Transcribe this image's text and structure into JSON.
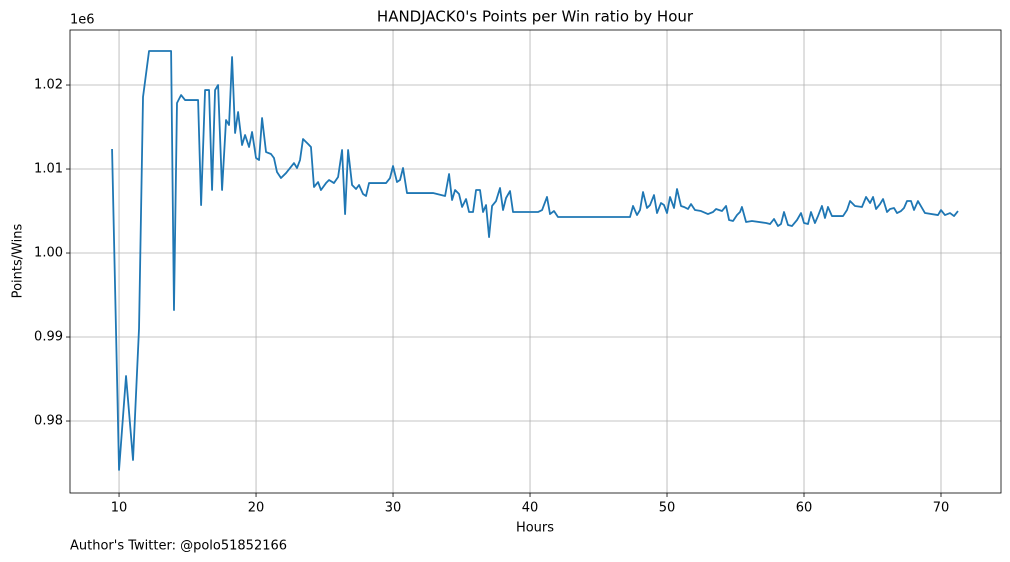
{
  "chart_data": {
    "type": "line",
    "title": "HANDJACK0's Points per Win ratio by Hour",
    "xlabel": "Hours",
    "ylabel": "Points/Wins",
    "y_offset_label": "1e6",
    "color": "#1f77b4",
    "grid": true,
    "xlim": [
      6.42,
      74.38
    ],
    "xticks": [
      10,
      20,
      30,
      40,
      50,
      60,
      70
    ],
    "ylim": [
      0.97143,
      1.02655
    ],
    "yticks": [
      0.98,
      0.99,
      {
        "value": 1,
        "label": "1.00"
      },
      1.01,
      1.02
    ],
    "x": [
      9.49,
      10.0,
      10.51,
      11.02,
      11.46,
      11.75,
      12.19,
      13.8,
      14.01,
      14.23,
      14.53,
      14.82,
      15.77,
      15.99,
      16.28,
      16.57,
      16.79,
      17.01,
      17.23,
      17.52,
      17.81,
      18.03,
      18.25,
      18.47,
      18.69,
      18.98,
      19.2,
      19.49,
      19.71,
      20.0,
      20.22,
      20.44,
      20.73,
      21.09,
      21.31,
      21.53,
      21.82,
      22.19,
      22.77,
      22.99,
      23.21,
      23.43,
      23.8,
      24.01,
      24.23,
      24.53,
      24.74,
      25.11,
      25.33,
      25.69,
      25.99,
      26.28,
      26.5,
      26.72,
      27.01,
      27.3,
      27.52,
      27.81,
      28.03,
      28.25,
      29.49,
      29.78,
      30.0,
      30.29,
      30.51,
      30.73,
      31.02,
      32.92,
      33.8,
      34.09,
      34.31,
      34.53,
      34.82,
      35.04,
      35.33,
      35.55,
      35.84,
      36.06,
      36.35,
      36.57,
      36.79,
      37.01,
      37.23,
      37.52,
      37.81,
      38.03,
      38.25,
      38.54,
      38.76,
      40.58,
      40.88,
      41.24,
      41.46,
      41.75,
      42.04,
      47.3,
      47.52,
      47.81,
      48.03,
      48.25,
      48.54,
      48.76,
      49.05,
      49.27,
      49.56,
      49.78,
      50.0,
      50.22,
      50.51,
      50.73,
      51.02,
      51.24,
      51.53,
      51.75,
      52.04,
      52.48,
      52.99,
      53.36,
      53.58,
      54.01,
      54.31,
      54.53,
      54.82,
      55.11,
      55.33,
      55.47,
      55.77,
      56.2,
      57.23,
      57.52,
      57.81,
      58.1,
      58.32,
      58.54,
      58.83,
      59.12,
      59.49,
      59.78,
      60.0,
      60.29,
      60.51,
      60.8,
      61.02,
      61.31,
      61.53,
      61.75,
      62.04,
      62.85,
      63.14,
      63.36,
      63.72,
      64.23,
      64.53,
      64.82,
      65.04,
      65.26,
      65.55,
      65.77,
      66.06,
      66.28,
      66.57,
      66.79,
      67.08,
      67.3,
      67.52,
      67.81,
      68.03,
      68.32,
      68.83,
      69.78,
      70.0,
      70.29,
      70.66,
      70.95,
      71.24
    ],
    "values": [
      1.01238,
      0.97417,
      0.98536,
      0.97536,
      0.99107,
      1.01857,
      1.02405,
      1.02405,
      0.99321,
      1.01786,
      1.01881,
      1.01821,
      1.01821,
      1.00571,
      1.0194,
      1.0194,
      1.0075,
      1.0194,
      1.02,
      1.0075,
      1.01583,
      1.01524,
      1.02333,
      1.01429,
      1.01679,
      1.01286,
      1.01405,
      1.01262,
      1.0144,
      1.01131,
      1.01107,
      1.01607,
      1.01202,
      1.01179,
      1.01131,
      1.00964,
      1.00893,
      1.00952,
      1.01071,
      1.01012,
      1.01107,
      1.01357,
      1.01298,
      1.01262,
      1.00786,
      1.00845,
      1.0075,
      1.00833,
      1.00869,
      1.00833,
      1.00905,
      1.01226,
      1.00464,
      1.01226,
      1.0081,
      1.00762,
      1.0081,
      1.00702,
      1.00679,
      1.00833,
      1.00833,
      1.00893,
      1.01036,
      1.00845,
      1.00869,
      1.01012,
      1.00714,
      1.00714,
      1.00679,
      1.0094,
      1.00631,
      1.0075,
      1.00702,
      1.00548,
      1.00643,
      1.00488,
      1.00488,
      1.0075,
      1.0075,
      1.00488,
      1.00571,
      1.0019,
      1.0056,
      1.00619,
      1.00774,
      1.00512,
      1.00655,
      1.00738,
      1.00488,
      1.00488,
      1.00512,
      1.00667,
      1.00464,
      1.005,
      1.00429,
      1.00429,
      1.0056,
      1.00452,
      1.00512,
      1.00726,
      1.00536,
      1.00571,
      1.0069,
      1.00476,
      1.00595,
      1.00571,
      1.00476,
      1.00667,
      1.00536,
      1.00762,
      1.0056,
      1.00548,
      1.00524,
      1.00583,
      1.00512,
      1.005,
      1.00464,
      1.00488,
      1.00524,
      1.005,
      1.0056,
      1.00393,
      1.00381,
      1.00452,
      1.00488,
      1.00548,
      1.00369,
      1.00381,
      1.00357,
      1.00345,
      1.00405,
      1.00321,
      1.00345,
      1.00488,
      1.00333,
      1.00321,
      1.00393,
      1.00476,
      1.00357,
      1.00345,
      1.00488,
      1.00357,
      1.0044,
      1.0056,
      1.00417,
      1.00548,
      1.0044,
      1.0044,
      1.00512,
      1.00619,
      1.0056,
      1.00548,
      1.00667,
      1.00595,
      1.00667,
      1.00524,
      1.00583,
      1.00643,
      1.00488,
      1.00524,
      1.00536,
      1.00476,
      1.005,
      1.00536,
      1.00619,
      1.00619,
      1.00512,
      1.00619,
      1.00476,
      1.00452,
      1.00512,
      1.00452,
      1.00476,
      1.0044,
      1.005
    ]
  },
  "footer": "Author's Twitter: @polo51852166"
}
